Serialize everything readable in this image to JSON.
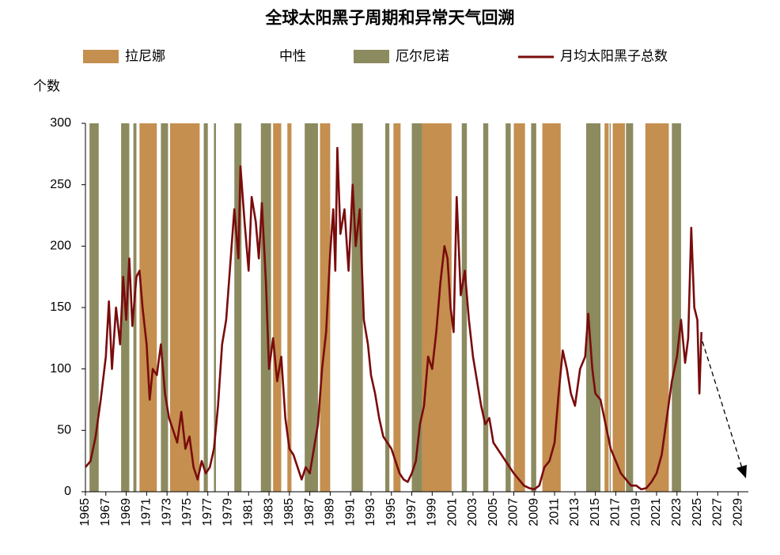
{
  "chart_data": {
    "type": "line",
    "title": "全球太阳黑子周期和异常天气回溯",
    "ylabel": "个数",
    "xlim": [
      1965,
      2030
    ],
    "xticks": [
      1965,
      1967,
      1969,
      1971,
      1973,
      1975,
      1977,
      1979,
      1981,
      1983,
      1985,
      1987,
      1989,
      1991,
      1993,
      1995,
      1997,
      1999,
      2001,
      2003,
      2005,
      2007,
      2009,
      2011,
      2013,
      2015,
      2017,
      2019,
      2021,
      2023,
      2025,
      2027,
      2029
    ],
    "ylim": [
      0,
      300
    ],
    "yticks": [
      0,
      50,
      100,
      150,
      200,
      250,
      300
    ],
    "bands": [
      {
        "name": "拉尼娜",
        "color": "#c48f4f",
        "ranges": [
          [
            1970.3,
            1972.0
          ],
          [
            1973.3,
            1976.2
          ],
          [
            1983.4,
            1984.2
          ],
          [
            1984.8,
            1985.2
          ],
          [
            1988.0,
            1989.0
          ],
          [
            1995.2,
            1995.9
          ],
          [
            1998.0,
            2000.9
          ],
          [
            2007.0,
            2008.1
          ],
          [
            2009.8,
            2011.6
          ],
          [
            2015.9,
            2016.3
          ],
          [
            2016.7,
            2017.9
          ],
          [
            2019.9,
            2022.2
          ]
        ]
      },
      {
        "name": "中性",
        "color": "#ffffff",
        "ranges": []
      },
      {
        "name": "厄尔尼诺",
        "color": "#8c8a5f",
        "ranges": [
          [
            1965.4,
            1966.3
          ],
          [
            1968.5,
            1969.3
          ],
          [
            1969.7,
            1970.0
          ],
          [
            1972.4,
            1973.1
          ],
          [
            1976.6,
            1977.0
          ],
          [
            1977.6,
            1977.8
          ],
          [
            1979.6,
            1980.3
          ],
          [
            1982.2,
            1983.2
          ],
          [
            1986.5,
            1987.8
          ],
          [
            1991.1,
            1992.2
          ],
          [
            1994.4,
            1994.8
          ],
          [
            1997.0,
            1998.0
          ],
          [
            2001.9,
            2002.4
          ],
          [
            2004.0,
            2004.5
          ],
          [
            2006.2,
            2006.7
          ],
          [
            2008.7,
            2009.2
          ],
          [
            2014.1,
            2015.5
          ],
          [
            2016.4,
            2016.5
          ],
          [
            2018.0,
            2018.7
          ],
          [
            2022.5,
            2023.4
          ]
        ]
      }
    ],
    "x": [
      1965.0,
      1965.5,
      1966.0,
      1966.5,
      1967.0,
      1967.3,
      1967.6,
      1968.0,
      1968.4,
      1968.7,
      1969.0,
      1969.3,
      1969.6,
      1970.0,
      1970.3,
      1970.6,
      1971.0,
      1971.3,
      1971.6,
      1972.0,
      1972.4,
      1972.8,
      1973.2,
      1973.6,
      1974.0,
      1974.4,
      1974.8,
      1975.2,
      1975.6,
      1976.0,
      1976.4,
      1976.8,
      1977.2,
      1977.6,
      1978.0,
      1978.4,
      1978.8,
      1979.2,
      1979.6,
      1980.0,
      1980.2,
      1980.6,
      1981.0,
      1981.3,
      1981.7,
      1982.0,
      1982.3,
      1982.7,
      1983.0,
      1983.4,
      1983.8,
      1984.2,
      1984.6,
      1985.0,
      1985.4,
      1985.8,
      1986.2,
      1986.6,
      1987.0,
      1987.4,
      1987.8,
      1988.2,
      1988.6,
      1989.0,
      1989.3,
      1989.5,
      1989.7,
      1990.0,
      1990.4,
      1990.8,
      1991.2,
      1991.5,
      1991.9,
      1992.3,
      1992.7,
      1993.0,
      1993.4,
      1993.8,
      1994.2,
      1994.6,
      1995.0,
      1995.4,
      1995.8,
      1996.2,
      1996.6,
      1997.0,
      1997.4,
      1997.8,
      1998.2,
      1998.6,
      1999.0,
      1999.4,
      1999.8,
      2000.2,
      2000.5,
      2000.8,
      2001.1,
      2001.4,
      2001.8,
      2002.2,
      2002.6,
      2003.0,
      2003.4,
      2003.8,
      2004.2,
      2004.6,
      2005.0,
      2005.4,
      2005.8,
      2006.2,
      2006.6,
      2007.0,
      2007.5,
      2008.0,
      2008.5,
      2009.0,
      2009.5,
      2010.0,
      2010.5,
      2011.0,
      2011.4,
      2011.8,
      2012.2,
      2012.6,
      2013.0,
      2013.5,
      2014.0,
      2014.3,
      2014.7,
      2015.0,
      2015.5,
      2016.0,
      2016.5,
      2017.0,
      2017.5,
      2018.0,
      2018.5,
      2019.0,
      2019.5,
      2020.0,
      2020.5,
      2021.0,
      2021.5,
      2022.0,
      2022.5,
      2023.0,
      2023.4,
      2023.8,
      2024.1,
      2024.4,
      2024.7,
      2025.0,
      2025.2,
      2025.4
    ],
    "series": [
      {
        "name": "月均太阳黑子总数",
        "color": "#7a0c0c",
        "values": [
          20,
          25,
          45,
          75,
          110,
          155,
          100,
          150,
          120,
          175,
          140,
          190,
          135,
          175,
          180,
          150,
          120,
          75,
          100,
          95,
          120,
          80,
          60,
          50,
          40,
          65,
          35,
          45,
          20,
          10,
          25,
          15,
          20,
          35,
          70,
          120,
          140,
          185,
          230,
          190,
          265,
          220,
          180,
          240,
          220,
          190,
          235,
          170,
          100,
          125,
          90,
          110,
          60,
          35,
          30,
          20,
          10,
          20,
          15,
          35,
          55,
          100,
          130,
          195,
          230,
          180,
          280,
          210,
          230,
          180,
          250,
          200,
          230,
          140,
          120,
          95,
          80,
          60,
          45,
          40,
          35,
          25,
          15,
          10,
          8,
          15,
          25,
          55,
          70,
          110,
          100,
          130,
          170,
          200,
          190,
          150,
          130,
          240,
          160,
          180,
          140,
          110,
          90,
          70,
          55,
          60,
          40,
          35,
          30,
          25,
          20,
          15,
          10,
          5,
          3,
          2,
          5,
          20,
          25,
          40,
          80,
          115,
          100,
          80,
          70,
          100,
          110,
          145,
          100,
          80,
          75,
          55,
          35,
          25,
          15,
          10,
          5,
          5,
          2,
          3,
          8,
          15,
          30,
          60,
          90,
          110,
          140,
          105,
          125,
          215,
          150,
          140,
          80,
          130
        ]
      }
    ]
  }
}
